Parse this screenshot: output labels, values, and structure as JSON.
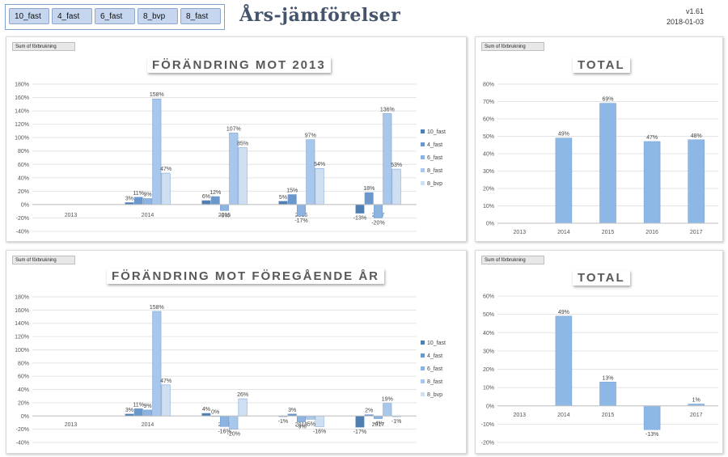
{
  "slicer": {
    "items": [
      "10_fast",
      "4_fast",
      "6_fast",
      "8_bvp",
      "8_fast"
    ]
  },
  "page_title": "Års-jämförelser",
  "version": "v1.61",
  "date": "2018-01-03",
  "field_button": "Sum of förbrukning",
  "colors": {
    "10_fast": "#4f7fb0",
    "4_fast": "#6b98cc",
    "6_fast": "#8db3e0",
    "8_fast": "#a9c7ea",
    "8_bvp": "#cfdff2",
    "total": "#8db8e6"
  },
  "chart_data": [
    {
      "type": "bar",
      "title": "FÖRÄNDRING MOT 2013",
      "categories": [
        "2013",
        "2014",
        "2015",
        "2016",
        "2017"
      ],
      "ylim": [
        -40,
        180
      ],
      "yticks": [
        "-40%",
        "-20%",
        "0%",
        "20%",
        "40%",
        "60%",
        "80%",
        "100%",
        "120%",
        "140%",
        "160%",
        "180%"
      ],
      "series": [
        {
          "name": "10_fast",
          "values": [
            null,
            3,
            6,
            5,
            -13
          ]
        },
        {
          "name": "4_fast",
          "values": [
            null,
            11,
            12,
            15,
            18
          ]
        },
        {
          "name": "6_fast",
          "values": [
            null,
            9,
            -9,
            -17,
            -20
          ]
        },
        {
          "name": "8_fast",
          "values": [
            null,
            158,
            107,
            97,
            136
          ]
        },
        {
          "name": "8_bvp",
          "values": [
            null,
            47,
            85,
            54,
            53
          ]
        }
      ],
      "legend": "right"
    },
    {
      "type": "bar",
      "title": "TOTAL",
      "categories": [
        "2013",
        "2014",
        "2015",
        "2016",
        "2017"
      ],
      "ylim": [
        0,
        80
      ],
      "yticks": [
        "0%",
        "10%",
        "20%",
        "30%",
        "40%",
        "50%",
        "60%",
        "70%",
        "80%"
      ],
      "values": [
        null,
        49,
        69,
        47,
        48
      ]
    },
    {
      "type": "bar",
      "title": "FÖRÄNDRING MOT FÖREGÅENDE ÅR",
      "categories": [
        "2013",
        "2014",
        "2015",
        "2016",
        "2017"
      ],
      "ylim": [
        -40,
        180
      ],
      "yticks": [
        "-40%",
        "-20%",
        "0%",
        "20%",
        "40%",
        "60%",
        "80%",
        "100%",
        "120%",
        "140%",
        "160%",
        "180%"
      ],
      "series": [
        {
          "name": "10_fast",
          "values": [
            null,
            3,
            4,
            -1,
            -17
          ]
        },
        {
          "name": "4_fast",
          "values": [
            null,
            11,
            0,
            3,
            2
          ]
        },
        {
          "name": "6_fast",
          "values": [
            null,
            9,
            -16,
            -9,
            -4
          ]
        },
        {
          "name": "8_fast",
          "values": [
            null,
            158,
            -20,
            -5,
            19
          ]
        },
        {
          "name": "8_bvp",
          "values": [
            null,
            47,
            26,
            -16,
            -1
          ]
        }
      ],
      "legend": "right"
    },
    {
      "type": "bar",
      "title": "TOTAL",
      "categories": [
        "2013",
        "2014",
        "2015",
        "2016",
        "2017"
      ],
      "ylim": [
        -20,
        60
      ],
      "yticks": [
        "-20%",
        "-10%",
        "0%",
        "10%",
        "20%",
        "30%",
        "40%",
        "50%",
        "60%"
      ],
      "values": [
        null,
        49,
        13,
        -13,
        1
      ]
    }
  ]
}
